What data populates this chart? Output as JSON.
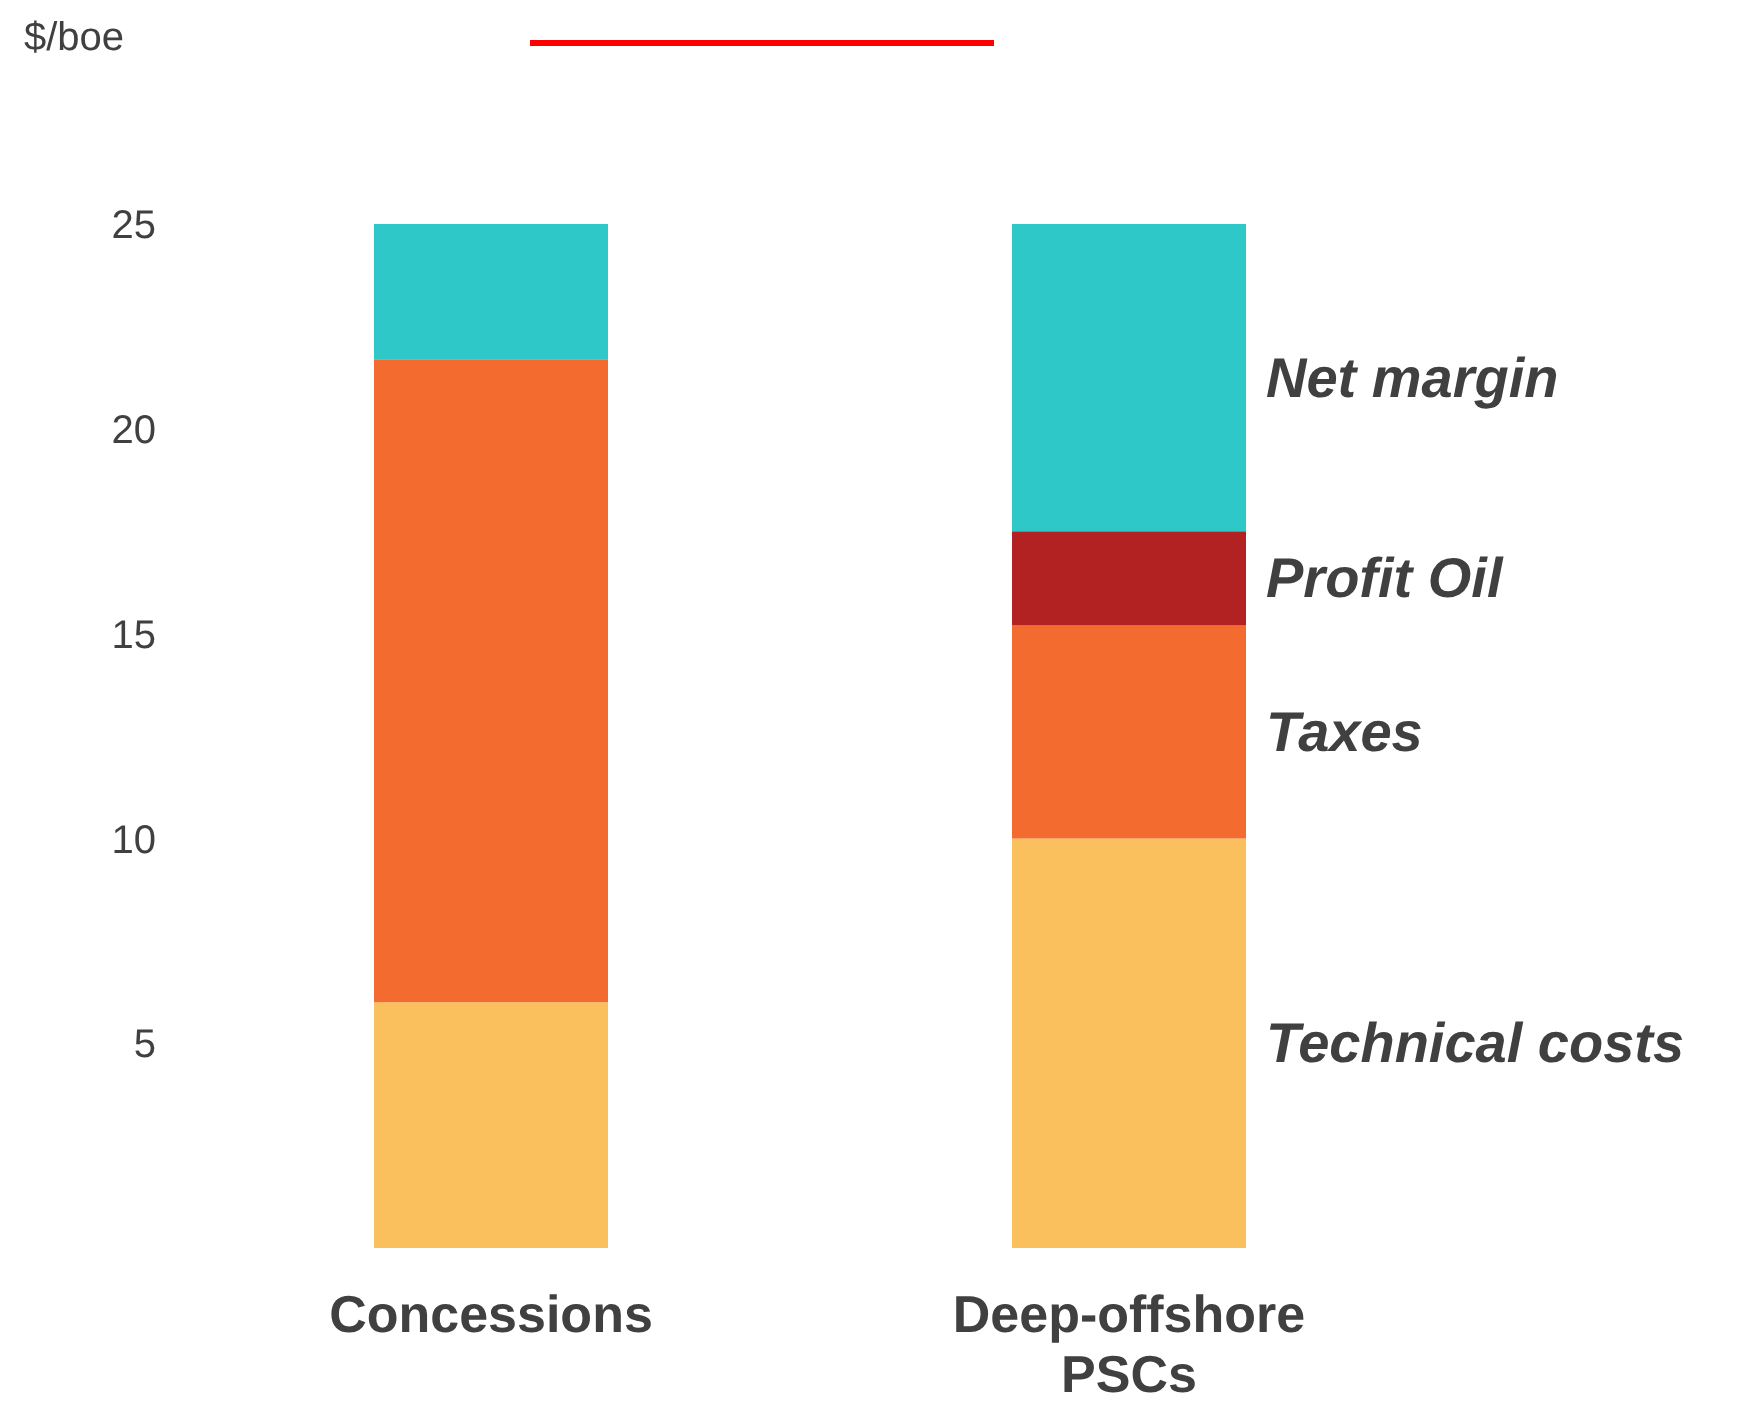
{
  "chart_data": {
    "type": "bar",
    "stacked": true,
    "ylabel": "$/boe",
    "categories": [
      "Concessions",
      "Deep-offshore PSCs"
    ],
    "series": [
      {
        "name": "Technical costs",
        "color": "#f9c05d",
        "values": [
          6,
          10
        ]
      },
      {
        "name": "Taxes",
        "color": "#f36b2e",
        "values": [
          15.7,
          5.2
        ]
      },
      {
        "name": "Profit Oil",
        "color": "#b22222",
        "values": [
          null,
          2.3
        ]
      },
      {
        "name": "Net margin",
        "color": "#2ec8c8",
        "values": [
          3.3,
          7.5
        ]
      }
    ],
    "ylim": [
      0,
      25
    ],
    "yticks": [
      5,
      10,
      15,
      20,
      25
    ],
    "grid": false,
    "legend": false
  }
}
